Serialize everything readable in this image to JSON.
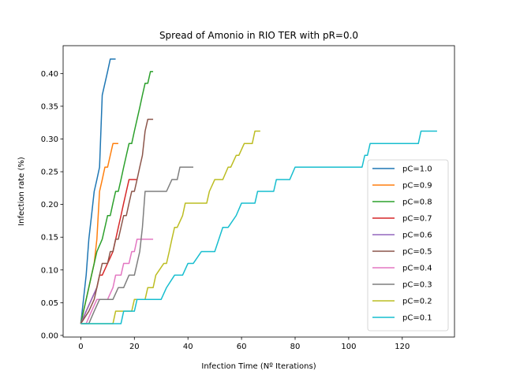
{
  "chart_data": {
    "type": "line",
    "title": "Spread of Amonio in RIO TER with pR=0.0",
    "xlabel": "Infection Time (Nº Iterations)",
    "ylabel": "Infection rate (%)",
    "xlim": [
      -6.6,
      139.5
    ],
    "ylim": [
      -0.0025,
      0.4425
    ],
    "xticks": [
      0,
      20,
      40,
      60,
      80,
      100,
      120
    ],
    "xtick_labels": [
      "0",
      "20",
      "40",
      "60",
      "80",
      "100",
      "120"
    ],
    "yticks": [
      0.0,
      0.05,
      0.1,
      0.15,
      0.2,
      0.25,
      0.3,
      0.35,
      0.4
    ],
    "ytick_labels": [
      "0.00",
      "0.05",
      "0.10",
      "0.15",
      "0.20",
      "0.25",
      "0.30",
      "0.35",
      "0.40"
    ],
    "grid": false,
    "legend_position": "lower-right",
    "series": [
      {
        "name": "pC=1.0",
        "color": "#1f77b4",
        "x": [
          0,
          1,
          2,
          3,
          4,
          5,
          6,
          7,
          8,
          9,
          10,
          11,
          12,
          13
        ],
        "y": [
          0.018,
          0.055,
          0.092,
          0.147,
          0.183,
          0.22,
          0.238,
          0.257,
          0.367,
          0.385,
          0.403,
          0.422,
          0.422,
          0.422
        ]
      },
      {
        "name": "pC=0.9",
        "color": "#ff7f0e",
        "x": [
          0,
          1,
          2,
          3,
          4,
          5,
          6,
          7,
          8,
          9,
          10,
          11,
          12,
          13,
          14
        ],
        "y": [
          0.018,
          0.037,
          0.055,
          0.073,
          0.092,
          0.11,
          0.147,
          0.22,
          0.238,
          0.257,
          0.257,
          0.275,
          0.293,
          0.293,
          0.293
        ]
      },
      {
        "name": "pC=0.8",
        "color": "#2ca02c",
        "x": [
          0,
          2,
          4,
          6,
          8,
          9,
          10,
          11,
          12,
          13,
          14,
          15,
          16,
          17,
          18,
          19,
          20,
          21,
          22,
          23,
          24,
          25,
          26,
          27
        ],
        "y": [
          0.018,
          0.055,
          0.092,
          0.128,
          0.147,
          0.165,
          0.183,
          0.183,
          0.202,
          0.22,
          0.22,
          0.238,
          0.257,
          0.275,
          0.293,
          0.293,
          0.312,
          0.33,
          0.348,
          0.367,
          0.385,
          0.385,
          0.403,
          0.403
        ]
      },
      {
        "name": "pC=0.7",
        "color": "#d62728",
        "x": [
          0,
          2,
          4,
          6,
          7,
          8,
          10,
          12,
          14,
          15,
          16,
          17,
          18,
          19,
          20,
          21
        ],
        "y": [
          0.018,
          0.037,
          0.055,
          0.073,
          0.092,
          0.092,
          0.11,
          0.128,
          0.165,
          0.183,
          0.202,
          0.22,
          0.238,
          0.238,
          0.238,
          0.238
        ]
      },
      {
        "name": "pC=0.6",
        "color": "#9467bd",
        "x": [
          0,
          2,
          4,
          6
        ],
        "y": [
          0.018,
          0.037,
          0.055,
          0.073
        ]
      },
      {
        "name": "pC=0.5",
        "color": "#8c564b",
        "x": [
          0,
          3,
          5,
          6,
          7,
          8,
          9,
          10,
          11,
          12,
          13,
          14,
          15,
          16,
          17,
          18,
          19,
          20,
          21,
          22,
          23,
          24,
          25,
          26,
          27
        ],
        "y": [
          0.018,
          0.037,
          0.055,
          0.073,
          0.092,
          0.11,
          0.11,
          0.11,
          0.128,
          0.128,
          0.147,
          0.147,
          0.165,
          0.183,
          0.183,
          0.202,
          0.22,
          0.22,
          0.238,
          0.257,
          0.275,
          0.312,
          0.33,
          0.33,
          0.33
        ]
      },
      {
        "name": "pC=0.4",
        "color": "#e377c2",
        "x": [
          0,
          2,
          4,
          6,
          8,
          10,
          12,
          13,
          14,
          15,
          16,
          17,
          18,
          19,
          20,
          21,
          22,
          23,
          24,
          25,
          26,
          27
        ],
        "y": [
          0.018,
          0.018,
          0.037,
          0.055,
          0.055,
          0.055,
          0.073,
          0.092,
          0.092,
          0.092,
          0.11,
          0.11,
          0.11,
          0.128,
          0.128,
          0.147,
          0.147,
          0.147,
          0.147,
          0.147,
          0.147,
          0.147
        ]
      },
      {
        "name": "pC=0.3",
        "color": "#7f7f7f",
        "x": [
          0,
          3,
          5,
          7,
          8,
          10,
          12,
          14,
          16,
          18,
          20,
          21,
          22,
          23,
          24,
          26,
          28,
          30,
          32,
          34,
          36,
          37,
          38,
          40,
          42
        ],
        "y": [
          0.018,
          0.018,
          0.037,
          0.055,
          0.055,
          0.055,
          0.055,
          0.073,
          0.073,
          0.092,
          0.092,
          0.11,
          0.128,
          0.165,
          0.22,
          0.22,
          0.22,
          0.22,
          0.22,
          0.238,
          0.238,
          0.257,
          0.257,
          0.257,
          0.257
        ]
      },
      {
        "name": "pC=0.2",
        "color": "#bcbd22",
        "x": [
          0,
          4,
          8,
          12,
          13,
          16,
          19,
          20,
          24,
          25,
          27,
          28,
          31,
          32,
          33,
          34,
          35,
          36,
          38,
          39,
          40,
          42,
          45,
          47,
          48,
          50,
          52,
          53,
          55,
          56,
          58,
          59,
          61,
          62,
          64,
          65,
          66,
          67
        ],
        "y": [
          0.018,
          0.018,
          0.018,
          0.018,
          0.037,
          0.037,
          0.037,
          0.055,
          0.055,
          0.073,
          0.073,
          0.092,
          0.11,
          0.11,
          0.128,
          0.147,
          0.165,
          0.165,
          0.183,
          0.202,
          0.202,
          0.202,
          0.202,
          0.202,
          0.22,
          0.238,
          0.238,
          0.238,
          0.257,
          0.257,
          0.275,
          0.275,
          0.293,
          0.293,
          0.293,
          0.312,
          0.312,
          0.312
        ]
      },
      {
        "name": "pC=0.1",
        "color": "#17becf",
        "x": [
          0,
          5,
          10,
          15,
          16,
          20,
          21,
          25,
          28,
          30,
          32,
          35,
          38,
          40,
          42,
          45,
          50,
          53,
          55,
          58,
          60,
          65,
          66,
          70,
          72,
          73,
          78,
          80,
          85,
          90,
          95,
          100,
          104,
          105,
          106,
          107,
          108,
          109,
          115,
          120,
          126,
          127,
          130,
          133
        ],
        "y": [
          0.018,
          0.018,
          0.018,
          0.018,
          0.037,
          0.037,
          0.055,
          0.055,
          0.055,
          0.055,
          0.073,
          0.092,
          0.092,
          0.11,
          0.11,
          0.128,
          0.128,
          0.165,
          0.165,
          0.183,
          0.202,
          0.202,
          0.22,
          0.22,
          0.22,
          0.238,
          0.238,
          0.257,
          0.257,
          0.257,
          0.257,
          0.257,
          0.257,
          0.257,
          0.275,
          0.275,
          0.293,
          0.293,
          0.293,
          0.293,
          0.293,
          0.312,
          0.312,
          0.312
        ]
      }
    ]
  }
}
